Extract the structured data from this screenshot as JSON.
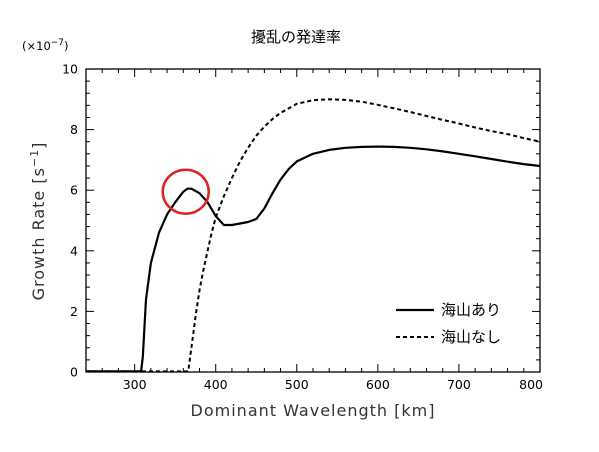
{
  "chart_data": {
    "type": "line",
    "title": "擾乱の発達率",
    "xlabel": "Dominant Wavelength [km]",
    "ylabel": "Growth Rate [s",
    "ylabel_sup": "−1",
    "ylabel_close": "]",
    "y_multiplier": "(×10",
    "y_multiplier_sup": "−7",
    "y_multiplier_close": ")",
    "xlim": [
      240,
      800
    ],
    "ylim": [
      0,
      10
    ],
    "x_ticks": [
      300,
      400,
      500,
      600,
      700,
      800
    ],
    "y_ticks": [
      0,
      2,
      4,
      6,
      8,
      10
    ],
    "grid": false,
    "legend_position": "bottom-right",
    "highlight": {
      "shape": "circle",
      "color": "#e02020",
      "x": 363,
      "y": 5.95
    },
    "series": [
      {
        "name": "海山あり",
        "style": "solid",
        "x": [
          240,
          300,
          308,
          310,
          314,
          320,
          330,
          340,
          350,
          360,
          365,
          370,
          380,
          390,
          400,
          410,
          420,
          430,
          440,
          450,
          460,
          470,
          480,
          490,
          500,
          520,
          540,
          560,
          580,
          600,
          620,
          640,
          660,
          680,
          700,
          720,
          740,
          760,
          780,
          800
        ],
        "y": [
          0.02,
          0.02,
          0.02,
          0.5,
          2.4,
          3.6,
          4.6,
          5.2,
          5.6,
          5.95,
          6.05,
          6.05,
          5.9,
          5.6,
          5.15,
          4.85,
          4.85,
          4.9,
          4.95,
          5.05,
          5.4,
          5.9,
          6.35,
          6.7,
          6.95,
          7.2,
          7.33,
          7.4,
          7.43,
          7.44,
          7.43,
          7.4,
          7.35,
          7.28,
          7.2,
          7.12,
          7.03,
          6.94,
          6.86,
          6.8
        ]
      },
      {
        "name": "海山なし",
        "style": "dashed",
        "x": [
          240,
          360,
          366,
          370,
          375,
          380,
          385,
          390,
          395,
          400,
          410,
          420,
          430,
          440,
          450,
          460,
          470,
          480,
          500,
          520,
          540,
          560,
          580,
          600,
          620,
          640,
          660,
          680,
          700,
          720,
          740,
          760,
          780,
          800
        ],
        "y": [
          0.02,
          0.02,
          0.02,
          0.8,
          1.8,
          2.7,
          3.4,
          4.0,
          4.6,
          5.1,
          5.8,
          6.4,
          6.95,
          7.4,
          7.8,
          8.1,
          8.35,
          8.55,
          8.85,
          8.97,
          9.0,
          8.98,
          8.92,
          8.82,
          8.7,
          8.58,
          8.45,
          8.32,
          8.2,
          8.07,
          7.95,
          7.85,
          7.72,
          7.6
        ]
      }
    ]
  }
}
